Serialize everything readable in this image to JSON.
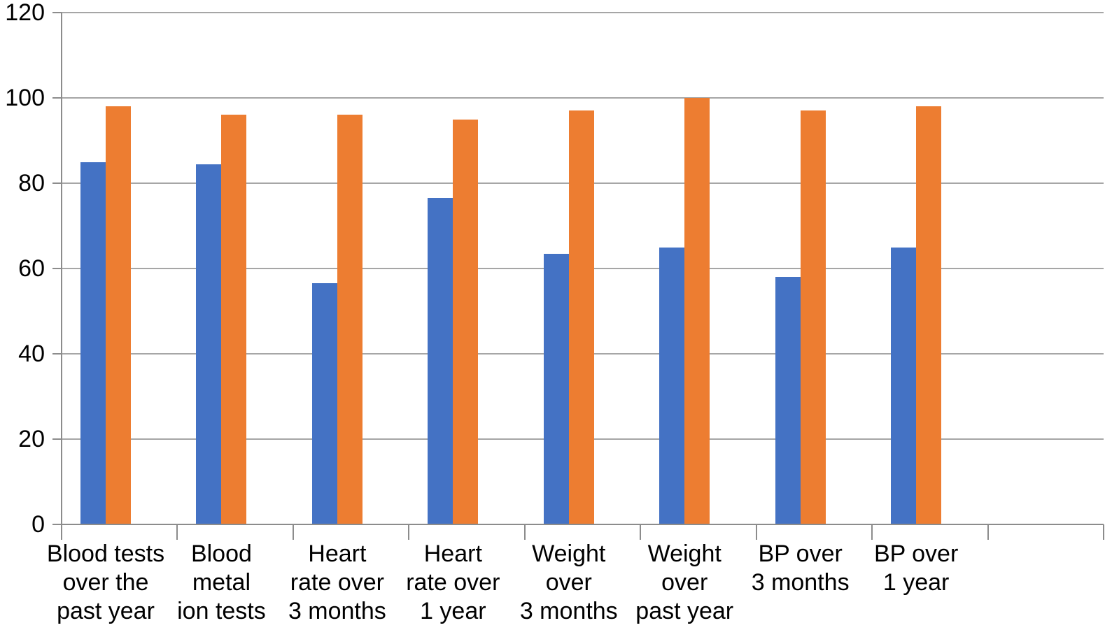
{
  "chart_data": {
    "type": "bar",
    "title": "",
    "categories": [
      "Blood tests over the past year",
      "Blood metal ion tests",
      "Heart rate over 3 months",
      "Heart rate over 1 year",
      "Weight over 3 months",
      "Weight over past year",
      "BP over 3 months",
      "BP over 1 year"
    ],
    "category_lines": [
      [
        "Blood tests",
        "over the",
        "past year"
      ],
      [
        "Blood",
        "metal",
        "ion tests"
      ],
      [
        "Heart",
        "rate over",
        "3 months"
      ],
      [
        "Heart",
        "rate over",
        "1 year"
      ],
      [
        "Weight",
        "over",
        "3 months"
      ],
      [
        "Weight",
        "over",
        "past year"
      ],
      [
        "BP over",
        "3 months"
      ],
      [
        "BP over",
        "1 year"
      ]
    ],
    "series": [
      {
        "color": "#4472C4",
        "values": [
          85,
          84.5,
          56.5,
          76.5,
          63.5,
          65,
          58,
          65
        ]
      },
      {
        "color": "#ED7D31",
        "values": [
          98,
          96,
          96,
          95,
          97,
          100,
          97,
          98
        ]
      }
    ],
    "xlabel": "",
    "ylabel": "",
    "ylim": [
      0,
      120
    ],
    "yticks": [
      0,
      20,
      40,
      60,
      80,
      100,
      120
    ],
    "grid": true,
    "legend": false,
    "empty_trailing_slots": 1,
    "gridline_color": "#A6A6A6",
    "axis_color": "#8C8C8C",
    "text_color": "#000000"
  }
}
